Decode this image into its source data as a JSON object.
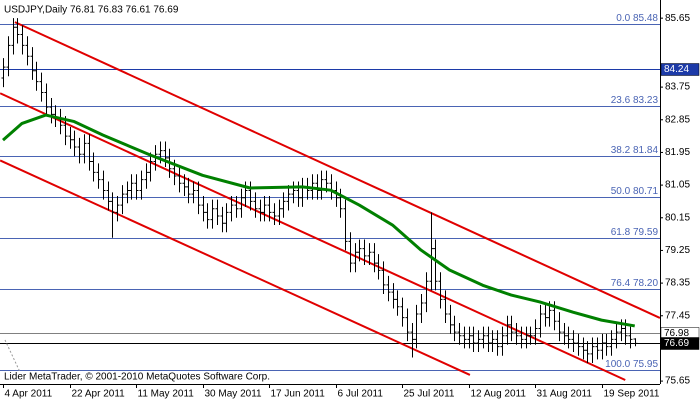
{
  "chart_data": {
    "type": "ohlc",
    "title": "USDJPY,Daily  76.81 76.83 76.61 76.69",
    "footer": "Lider MetaTrader, © 2001-2010 MetaQuotes Software Corp.",
    "bar_color": "#000000",
    "categories": [
      "4 Apr 2011",
      null,
      null,
      null,
      null,
      null,
      null,
      null,
      null,
      null,
      null,
      null,
      null,
      null,
      "22 Apr 2011",
      null,
      null,
      null,
      null,
      null,
      null,
      null,
      null,
      null,
      null,
      null,
      null,
      null,
      "11 May 2011",
      null,
      null,
      null,
      null,
      null,
      null,
      null,
      null,
      null,
      null,
      null,
      null,
      null,
      "30 May 2011",
      null,
      null,
      null,
      null,
      null,
      null,
      null,
      null,
      null,
      null,
      null,
      null,
      null,
      "17 Jun 2011",
      null,
      null,
      null,
      null,
      null,
      null,
      null,
      null,
      null,
      null,
      null,
      null,
      null,
      "6 Jul 2011",
      null,
      null,
      null,
      null,
      null,
      null,
      null,
      null,
      null,
      null,
      null,
      null,
      null,
      "25 Jul 2011",
      null,
      null,
      null,
      null,
      null,
      null,
      null,
      null,
      null,
      null,
      null,
      null,
      null,
      "12 Aug 2011",
      null,
      null,
      null,
      null,
      null,
      null,
      null,
      null,
      null,
      null,
      null,
      null,
      null,
      "31 Aug 2011",
      null,
      null,
      null,
      null,
      null,
      null,
      null,
      null,
      null,
      null,
      null,
      null,
      null,
      "19 Sep 2011",
      null,
      null,
      null,
      null,
      null,
      null,
      null
    ],
    "bars": [
      [
        84.0,
        84.55,
        83.75,
        84.3
      ],
      [
        84.3,
        85.15,
        84.05,
        84.9
      ],
      [
        84.9,
        85.65,
        84.65,
        85.4
      ],
      [
        85.4,
        85.65,
        84.95,
        85.2
      ],
      [
        85.2,
        85.45,
        84.65,
        84.9
      ],
      [
        84.9,
        85.15,
        84.35,
        84.6
      ],
      [
        84.6,
        84.85,
        83.95,
        84.2
      ],
      [
        84.2,
        84.45,
        83.65,
        83.9
      ],
      [
        83.9,
        84.15,
        83.35,
        83.6
      ],
      [
        83.6,
        83.85,
        82.95,
        83.2
      ],
      [
        83.2,
        83.45,
        82.75,
        83.0
      ],
      [
        83.0,
        83.25,
        82.65,
        82.9
      ],
      [
        82.9,
        83.15,
        82.45,
        82.7
      ],
      [
        82.7,
        82.95,
        82.15,
        82.4
      ],
      [
        82.4,
        82.65,
        82.05,
        82.3
      ],
      [
        82.3,
        82.55,
        81.85,
        82.1
      ],
      [
        82.1,
        82.35,
        81.65,
        81.9
      ],
      [
        81.9,
        82.45,
        81.65,
        82.2
      ],
      [
        82.2,
        82.45,
        81.45,
        81.7
      ],
      [
        81.7,
        81.95,
        81.15,
        81.4
      ],
      [
        81.4,
        81.65,
        80.95,
        81.2
      ],
      [
        81.2,
        81.45,
        80.65,
        80.9
      ],
      [
        80.9,
        81.15,
        80.35,
        80.6
      ],
      [
        80.6,
        80.85,
        79.6,
        80.3
      ],
      [
        80.3,
        80.75,
        80.05,
        80.5
      ],
      [
        80.5,
        81.05,
        80.25,
        80.8
      ],
      [
        80.8,
        81.15,
        80.55,
        80.9
      ],
      [
        80.9,
        81.35,
        80.65,
        81.1
      ],
      [
        81.1,
        81.35,
        80.65,
        80.9
      ],
      [
        80.9,
        81.45,
        80.65,
        81.2
      ],
      [
        81.2,
        81.65,
        80.95,
        81.4
      ],
      [
        81.4,
        81.95,
        81.15,
        81.7
      ],
      [
        81.7,
        82.15,
        81.45,
        81.9
      ],
      [
        81.9,
        82.25,
        81.65,
        82.0
      ],
      [
        82.0,
        82.25,
        81.55,
        81.8
      ],
      [
        81.8,
        82.05,
        81.25,
        81.5
      ],
      [
        81.5,
        81.75,
        81.05,
        81.3
      ],
      [
        81.3,
        81.55,
        80.85,
        81.1
      ],
      [
        81.1,
        81.35,
        80.75,
        81.0
      ],
      [
        81.0,
        81.25,
        80.55,
        80.8
      ],
      [
        80.8,
        81.15,
        80.55,
        80.9
      ],
      [
        80.9,
        81.15,
        80.25,
        80.5
      ],
      [
        80.5,
        80.75,
        80.05,
        80.3
      ],
      [
        80.3,
        80.55,
        79.85,
        80.1
      ],
      [
        80.1,
        80.65,
        79.85,
        80.4
      ],
      [
        80.4,
        80.65,
        79.95,
        80.2
      ],
      [
        80.2,
        80.45,
        79.75,
        80.0
      ],
      [
        80.0,
        80.55,
        79.75,
        80.3
      ],
      [
        80.3,
        80.75,
        80.05,
        80.5
      ],
      [
        80.5,
        80.75,
        80.15,
        80.4
      ],
      [
        80.4,
        80.95,
        80.15,
        80.7
      ],
      [
        80.7,
        81.15,
        80.45,
        80.9
      ],
      [
        80.9,
        81.15,
        80.35,
        80.6
      ],
      [
        80.6,
        80.85,
        80.15,
        80.4
      ],
      [
        80.4,
        80.65,
        80.05,
        80.3
      ],
      [
        80.3,
        80.75,
        80.05,
        80.5
      ],
      [
        80.5,
        80.75,
        80.05,
        80.3
      ],
      [
        80.3,
        80.55,
        79.95,
        80.2
      ],
      [
        80.2,
        80.65,
        79.95,
        80.4
      ],
      [
        80.4,
        80.85,
        80.15,
        80.6
      ],
      [
        80.6,
        81.05,
        80.35,
        80.8
      ],
      [
        80.8,
        81.15,
        80.55,
        80.9
      ],
      [
        80.9,
        81.15,
        80.45,
        80.7
      ],
      [
        80.7,
        81.25,
        80.45,
        81.0
      ],
      [
        81.0,
        81.25,
        80.65,
        80.9
      ],
      [
        80.9,
        81.35,
        80.65,
        81.1
      ],
      [
        81.1,
        81.35,
        80.65,
        80.9
      ],
      [
        80.9,
        81.45,
        80.65,
        81.2
      ],
      [
        81.2,
        81.45,
        80.85,
        81.1
      ],
      [
        81.1,
        81.35,
        80.65,
        80.9
      ],
      [
        80.9,
        81.15,
        80.45,
        80.7
      ],
      [
        80.7,
        80.95,
        80.15,
        80.4
      ],
      [
        80.4,
        80.65,
        79.25,
        79.5
      ],
      [
        79.5,
        79.75,
        78.65,
        78.9
      ],
      [
        78.9,
        79.45,
        78.65,
        79.2
      ],
      [
        79.2,
        79.55,
        78.95,
        79.3
      ],
      [
        79.3,
        79.55,
        78.85,
        79.1
      ],
      [
        79.1,
        79.45,
        78.85,
        79.2
      ],
      [
        79.2,
        79.45,
        78.65,
        78.9
      ],
      [
        78.9,
        79.15,
        78.45,
        78.7
      ],
      [
        78.7,
        78.95,
        78.05,
        78.3
      ],
      [
        78.3,
        78.55,
        77.85,
        78.1
      ],
      [
        78.1,
        78.35,
        77.65,
        77.9
      ],
      [
        77.9,
        78.15,
        77.45,
        77.7
      ],
      [
        77.7,
        77.95,
        77.15,
        77.4
      ],
      [
        77.4,
        77.65,
        76.75,
        77.0
      ],
      [
        77.0,
        77.25,
        76.3,
        76.8
      ],
      [
        76.8,
        77.75,
        76.55,
        77.5
      ],
      [
        77.5,
        78.05,
        77.25,
        77.8
      ],
      [
        77.8,
        78.65,
        77.55,
        78.4
      ],
      [
        78.4,
        80.3,
        78.15,
        79.3
      ],
      [
        79.3,
        79.55,
        78.15,
        78.4
      ],
      [
        78.4,
        78.65,
        77.65,
        77.9
      ],
      [
        77.9,
        78.15,
        77.25,
        77.5
      ],
      [
        77.5,
        77.75,
        76.95,
        77.2
      ],
      [
        77.2,
        77.45,
        76.75,
        77.0
      ],
      [
        77.0,
        77.25,
        76.65,
        76.9
      ],
      [
        76.9,
        77.15,
        76.55,
        76.8
      ],
      [
        76.8,
        77.15,
        76.55,
        76.9
      ],
      [
        76.9,
        77.15,
        76.45,
        76.7
      ],
      [
        76.7,
        77.05,
        76.45,
        76.8
      ],
      [
        76.8,
        77.15,
        76.55,
        76.9
      ],
      [
        76.9,
        77.15,
        76.45,
        76.7
      ],
      [
        76.7,
        77.05,
        76.45,
        76.8
      ],
      [
        76.8,
        77.05,
        76.35,
        76.6
      ],
      [
        76.6,
        77.15,
        76.35,
        76.9
      ],
      [
        76.9,
        77.45,
        76.65,
        77.2
      ],
      [
        77.2,
        77.45,
        76.75,
        77.0
      ],
      [
        77.0,
        77.25,
        76.65,
        76.9
      ],
      [
        76.9,
        77.15,
        76.55,
        76.8
      ],
      [
        76.8,
        77.15,
        76.55,
        76.9
      ],
      [
        76.9,
        77.15,
        76.65,
        76.9
      ],
      [
        76.9,
        77.35,
        76.65,
        77.1
      ],
      [
        77.1,
        77.75,
        76.85,
        77.5
      ],
      [
        77.5,
        77.75,
        77.15,
        77.4
      ],
      [
        77.4,
        77.85,
        77.15,
        77.6
      ],
      [
        77.6,
        77.85,
        77.05,
        77.3
      ],
      [
        77.3,
        77.55,
        76.75,
        77.0
      ],
      [
        77.0,
        77.25,
        76.65,
        76.9
      ],
      [
        76.9,
        77.15,
        76.55,
        76.8
      ],
      [
        76.8,
        77.05,
        76.45,
        76.7
      ],
      [
        76.7,
        76.95,
        76.35,
        76.6
      ],
      [
        76.6,
        76.85,
        76.25,
        76.5
      ],
      [
        76.5,
        76.75,
        76.15,
        76.4
      ],
      [
        76.4,
        76.85,
        76.15,
        76.6
      ],
      [
        76.6,
        76.85,
        76.25,
        76.5
      ],
      [
        76.5,
        76.95,
        76.25,
        76.7
      ],
      [
        76.7,
        76.95,
        76.35,
        76.6
      ],
      [
        76.6,
        77.05,
        76.35,
        76.8
      ],
      [
        76.8,
        77.25,
        76.55,
        77.0
      ],
      [
        77.0,
        77.35,
        76.75,
        77.1
      ],
      [
        77.1,
        77.35,
        76.65,
        76.9
      ],
      [
        76.9,
        77.15,
        76.55,
        76.8
      ],
      [
        76.81,
        76.83,
        76.61,
        76.69
      ]
    ],
    "moving_average": {
      "color": "#008000",
      "x": [
        0,
        4,
        9,
        15,
        21,
        31,
        42,
        52,
        63,
        69,
        75,
        82,
        88,
        94,
        101,
        107,
        113,
        120,
        126,
        133
      ],
      "values": [
        82.29,
        82.75,
        82.98,
        82.8,
        82.43,
        81.88,
        81.32,
        80.97,
        81.0,
        80.91,
        80.5,
        79.95,
        79.26,
        78.71,
        78.29,
        78.02,
        77.83,
        77.55,
        77.33,
        77.17
      ]
    },
    "channel": {
      "color": "#e00000",
      "lines": [
        {
          "x": [
            2.5,
            138.3
          ],
          "values": [
            85.54,
            77.39
          ]
        },
        {
          "x": [
            -0.6,
            131
          ],
          "values": [
            83.58,
            75.68
          ]
        },
        {
          "x": [
            -0.6,
            98.3
          ],
          "values": [
            81.73,
            75.82
          ]
        }
      ]
    },
    "fib_color": "#4a64b4",
    "fib_levels": [
      {
        "value": 85.48,
        "label": "0.0 85.48"
      },
      {
        "value": 83.23,
        "label": "23.6 83.23"
      },
      {
        "value": 81.84,
        "label": "38.2 81.84"
      },
      {
        "value": 80.71,
        "label": "50.0 80.71"
      },
      {
        "value": 79.59,
        "label": "61.8 79.59"
      },
      {
        "value": 78.2,
        "label": "76.4 78.20"
      },
      {
        "value": 75.95,
        "label": "100.0 75.95"
      }
    ],
    "price_lines": [
      {
        "value": 84.24,
        "color": "#1c3aa8",
        "box": "#1c3aa8",
        "text_color": "#ffffff"
      },
      {
        "value": 76.98,
        "color": "#808080",
        "box": "#ffffff",
        "text_color": "#000000"
      },
      {
        "value": 76.69,
        "color": "#000000",
        "box": "#000000",
        "text_color": "#ffffff"
      }
    ],
    "ylim": [
      75.57,
      86.15
    ],
    "yticks": [
      85.65,
      83.75,
      82.85,
      81.95,
      81.05,
      80.15,
      79.25,
      78.35,
      77.45,
      75.65
    ]
  }
}
